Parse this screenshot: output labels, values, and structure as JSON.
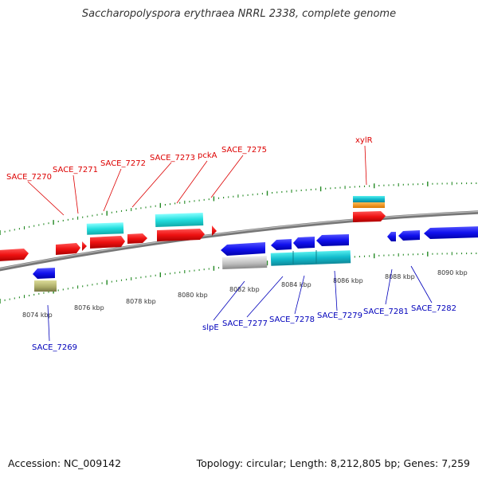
{
  "title": "Saccharopolyspora erythraea NRRL 2338, complete genome",
  "footer": {
    "accession": "Accession: NC_009142",
    "topology": "Topology: circular; Length: 8,212,805 bp; Genes: 7,259"
  },
  "colors": {
    "forward_gene": "#ee1111",
    "reverse_gene": "#1111ee",
    "forward_label": "#dd0000",
    "reverse_label": "#0000bb",
    "rna": "#22dddd",
    "backbone": "#888888",
    "tick": "#228822"
  },
  "scale_labels": [
    "8074 kbp",
    "8076 kbp",
    "8078 kbp",
    "8080 kbp",
    "8082 kbp",
    "8084 kbp",
    "8086 kbp",
    "8088 kbp",
    "8090 kbp"
  ],
  "top_labels": [
    "SACE_7270",
    "SACE_7271",
    "SACE_7272",
    "SACE_7273",
    "pckA",
    "SACE_7275",
    "xylR"
  ],
  "bottom_labels": [
    "SACE_7269",
    "slpE",
    "SACE_7277",
    "SACE_7278",
    "SACE_7279",
    "SACE_7281",
    "SACE_7282"
  ]
}
